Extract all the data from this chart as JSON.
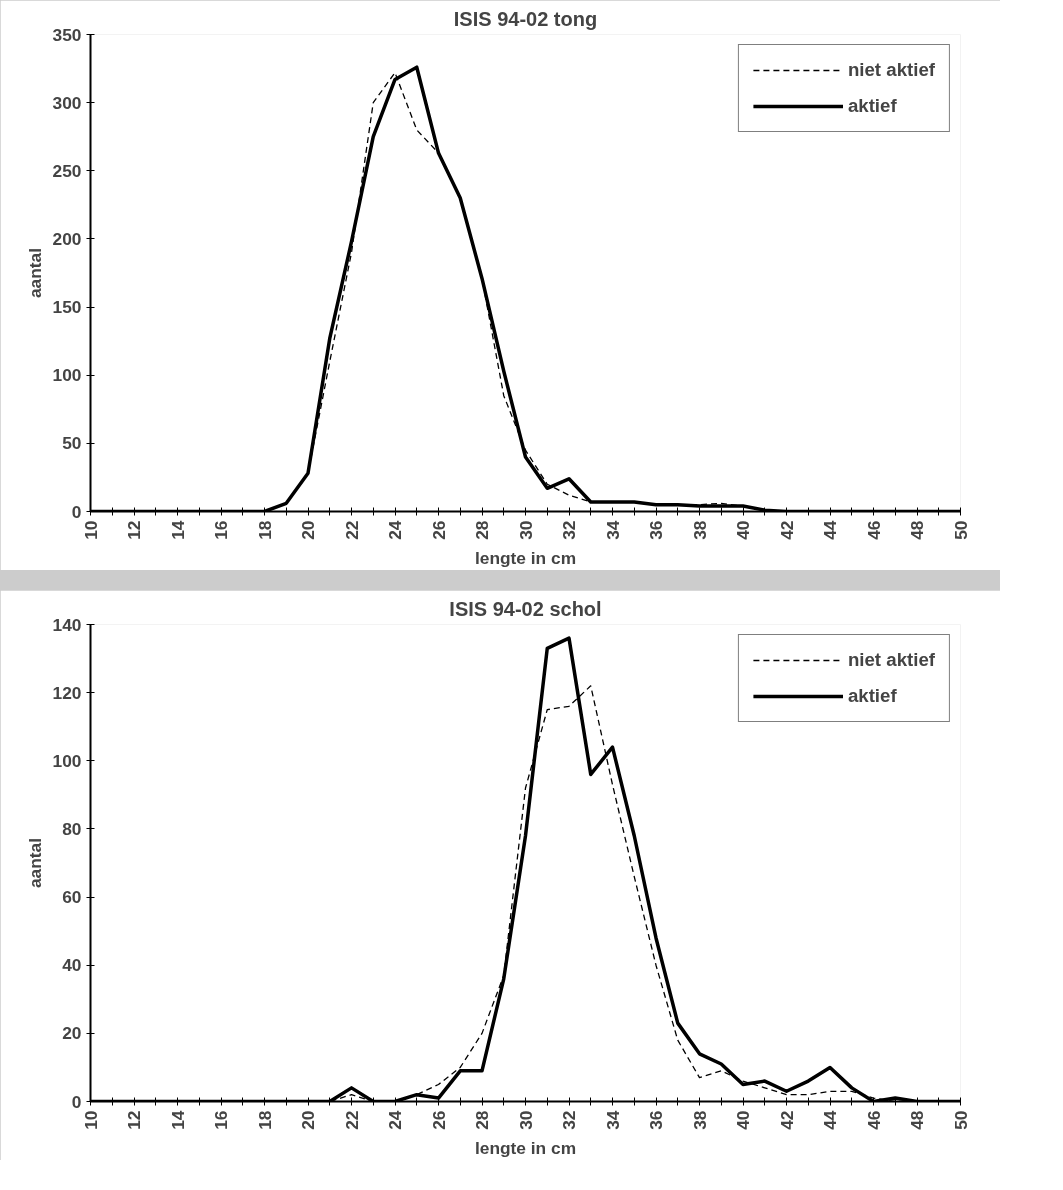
{
  "chart_data": [
    {
      "type": "line",
      "title": "ISIS 94-02 tong",
      "xlabel": "lengte in cm",
      "ylabel": "aantal",
      "x": [
        10,
        11,
        12,
        13,
        14,
        15,
        16,
        17,
        18,
        19,
        20,
        21,
        22,
        23,
        24,
        25,
        26,
        27,
        28,
        29,
        30,
        31,
        32,
        33,
        34,
        35,
        36,
        37,
        38,
        39,
        40,
        41,
        42,
        43,
        44,
        45,
        46,
        47,
        48,
        49,
        50
      ],
      "series": [
        {
          "name": "niet aktief",
          "color": "#000000",
          "line_style": "dashed",
          "values": [
            0,
            0,
            0,
            0,
            0,
            0,
            0,
            0,
            0,
            6,
            28,
            110,
            190,
            300,
            322,
            280,
            263,
            230,
            171,
            85,
            45,
            20,
            12,
            7,
            7,
            7,
            5,
            5,
            5,
            6,
            4,
            1,
            0,
            0,
            0,
            0,
            0,
            0,
            0,
            0,
            0
          ]
        },
        {
          "name": "aktief",
          "color": "#000000",
          "line_style": "solid",
          "values": [
            0,
            0,
            0,
            0,
            0,
            0,
            0,
            0,
            0,
            6,
            28,
            127,
            198,
            275,
            317,
            326,
            263,
            230,
            171,
            103,
            40,
            17,
            24,
            7,
            7,
            7,
            5,
            5,
            4,
            4,
            4,
            1,
            0,
            0,
            0,
            0,
            0,
            0,
            0,
            0,
            0
          ]
        }
      ],
      "xlim": [
        10,
        50
      ],
      "ylim": [
        0,
        350
      ],
      "xticks": [
        10,
        {
          "value": 11,
          "label": null
        },
        12,
        {
          "value": 13,
          "label": null
        },
        14,
        {
          "value": 15,
          "label": null
        },
        16,
        {
          "value": 17,
          "label": null
        },
        18,
        {
          "value": 19,
          "label": null
        },
        20,
        {
          "value": 21,
          "label": null
        },
        22,
        {
          "value": 23,
          "label": null
        },
        24,
        {
          "value": 25,
          "label": null
        },
        26,
        {
          "value": 27,
          "label": null
        },
        28,
        {
          "value": 29,
          "label": null
        },
        30,
        {
          "value": 31,
          "label": null
        },
        32,
        {
          "value": 33,
          "label": null
        },
        34,
        {
          "value": 35,
          "label": null
        },
        36,
        {
          "value": 37,
          "label": null
        },
        38,
        {
          "value": 39,
          "label": null
        },
        40,
        {
          "value": 41,
          "label": null
        },
        42,
        {
          "value": 43,
          "label": null
        },
        44,
        {
          "value": 45,
          "label": null
        },
        46,
        {
          "value": 47,
          "label": null
        },
        48,
        {
          "value": 49,
          "label": null
        },
        50
      ],
      "yticks": [
        0,
        50,
        100,
        150,
        200,
        250,
        300,
        350
      ],
      "grid": false,
      "legend": "top right",
      "marker": "none"
    },
    {
      "type": "line",
      "title": "ISIS 94-02 schol",
      "xlabel": "lengte in cm",
      "ylabel": "aantal",
      "x": [
        10,
        11,
        12,
        13,
        14,
        15,
        16,
        17,
        18,
        19,
        20,
        21,
        22,
        23,
        24,
        25,
        26,
        27,
        28,
        29,
        30,
        31,
        32,
        33,
        34,
        35,
        36,
        37,
        38,
        39,
        40,
        41,
        42,
        43,
        44,
        45,
        46,
        47,
        48,
        49,
        50
      ],
      "series": [
        {
          "name": "niet aktief",
          "color": "#000000",
          "line_style": "dashed",
          "values": [
            0,
            0,
            0,
            0,
            0,
            0,
            0,
            0,
            0,
            0,
            0,
            0,
            2,
            0,
            0,
            2,
            5,
            10,
            20,
            37,
            92,
            115,
            116,
            122,
            93,
            66,
            40,
            18,
            7,
            9,
            6,
            4,
            2,
            2,
            3,
            3,
            1,
            0,
            0,
            0,
            0
          ]
        },
        {
          "name": "aktief",
          "color": "#000000",
          "line_style": "solid",
          "values": [
            0,
            0,
            0,
            0,
            0,
            0,
            0,
            0,
            0,
            0,
            0,
            0,
            4,
            0,
            0,
            2,
            1,
            9,
            9,
            36,
            78,
            133,
            136,
            96,
            104,
            78,
            48,
            23,
            14,
            11,
            5,
            6,
            3,
            6,
            10,
            4,
            0,
            1,
            0,
            0,
            0
          ]
        }
      ],
      "xlim": [
        10,
        50
      ],
      "ylim": [
        0,
        140
      ],
      "xticks": [
        10,
        {
          "value": 11,
          "label": null
        },
        12,
        {
          "value": 13,
          "label": null
        },
        14,
        {
          "value": 15,
          "label": null
        },
        16,
        {
          "value": 17,
          "label": null
        },
        18,
        {
          "value": 19,
          "label": null
        },
        20,
        {
          "value": 21,
          "label": null
        },
        22,
        {
          "value": 23,
          "label": null
        },
        24,
        {
          "value": 25,
          "label": null
        },
        26,
        {
          "value": 27,
          "label": null
        },
        28,
        {
          "value": 29,
          "label": null
        },
        30,
        {
          "value": 31,
          "label": null
        },
        32,
        {
          "value": 33,
          "label": null
        },
        34,
        {
          "value": 35,
          "label": null
        },
        36,
        {
          "value": 37,
          "label": null
        },
        38,
        {
          "value": 39,
          "label": null
        },
        40,
        {
          "value": 41,
          "label": null
        },
        42,
        {
          "value": 43,
          "label": null
        },
        44,
        {
          "value": 45,
          "label": null
        },
        46,
        {
          "value": 47,
          "label": null
        },
        48,
        {
          "value": 49,
          "label": null
        },
        50
      ],
      "yticks": [
        0,
        20,
        40,
        60,
        80,
        100,
        120,
        140
      ],
      "grid": false,
      "legend": "top right",
      "marker": "none"
    }
  ]
}
